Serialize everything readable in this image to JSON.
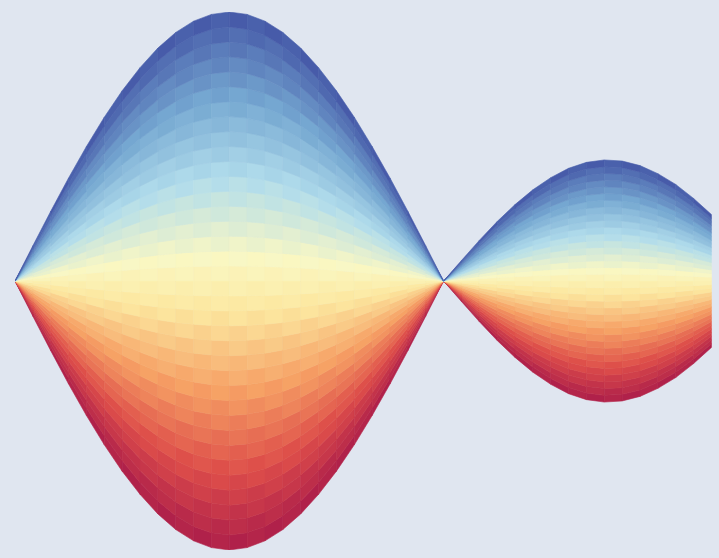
{
  "chart_data": {
    "type": "surface",
    "x": [
      0,
      0.25,
      0.5,
      0.75,
      1,
      1.25,
      1.5,
      1.75,
      2,
      2.25,
      2.5,
      2.75,
      3,
      3.25,
      3.5,
      3.75,
      4,
      4.25,
      4.5,
      4.75,
      5,
      5.25,
      5.5,
      5.75,
      6,
      6.25,
      6.5,
      6.75,
      7,
      7.25,
      7.5,
      7.75,
      8,
      8.25,
      8.5,
      8.75,
      9,
      9.25,
      9.5,
      9.75
    ],
    "values": [
      0,
      0.131,
      0.259,
      0.383,
      0.5,
      0.609,
      0.707,
      0.793,
      0.866,
      0.924,
      0.966,
      0.991,
      1,
      0.991,
      0.966,
      0.924,
      0.866,
      0.793,
      0.707,
      0.609,
      0.5,
      0.383,
      0.259,
      0.131,
      0,
      0.076,
      0.151,
      0.221,
      0.284,
      0.339,
      0.384,
      0.419,
      0.441,
      0.45,
      0.446,
      0.429,
      0.399,
      0.359,
      0.307,
      0.247
    ],
    "xlim": [
      0,
      9.8
    ],
    "ylim": [
      -1,
      1
    ],
    "tick_labels": false
  }
}
